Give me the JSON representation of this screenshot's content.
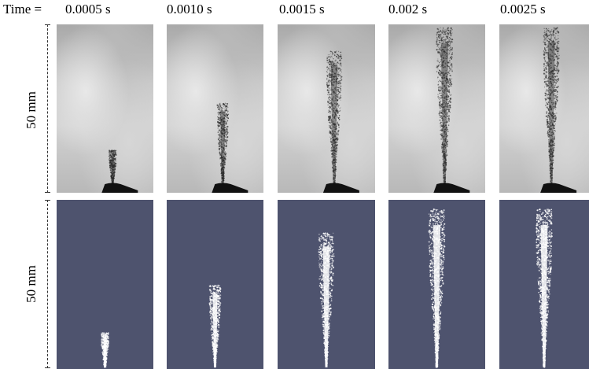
{
  "time_prefix": "Time = ",
  "frames": [
    {
      "time": "0.0005 s",
      "penetration": 0.22,
      "spread": 0.06
    },
    {
      "time": "0.0010 s",
      "penetration": 0.52,
      "spread": 0.22
    },
    {
      "time": "0.0015 s",
      "penetration": 0.85,
      "spread": 0.38
    },
    {
      "time": "0.002 s",
      "penetration": 1.0,
      "spread": 0.42
    },
    {
      "time": "0.0025 s",
      "penetration": 1.0,
      "spread": 0.4
    }
  ],
  "scale_labels": {
    "top": "50 mm",
    "bottom": "50 mm"
  },
  "colors": {
    "sim_background": "#4e536e",
    "spray_sim": "#ffffff",
    "spray_photo": "#2a2a2a",
    "nozzle": "#111111"
  }
}
